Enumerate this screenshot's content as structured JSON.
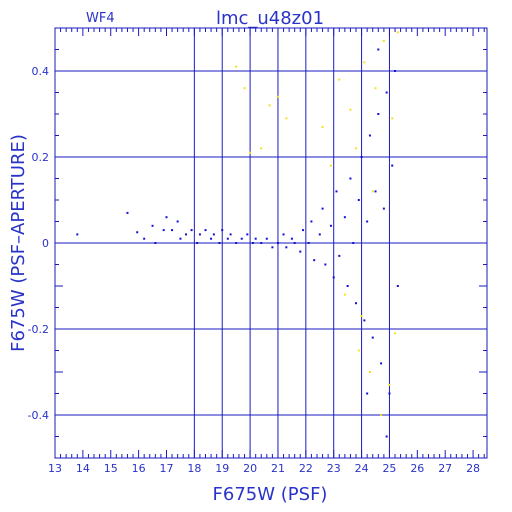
{
  "chart_data": {
    "type": "scatter",
    "title": "lmc_u48z01",
    "subtitle": "WF4",
    "xlabel": "F675W (PSF)",
    "ylabel": "F675W (PSF–APERTURE)",
    "xlim": [
      13,
      28.5
    ],
    "ylim": [
      -0.5,
      0.5
    ],
    "x_ticks": [
      "13",
      "14",
      "15",
      "16",
      "17",
      "18",
      "19",
      "20",
      "21",
      "22",
      "23",
      "24",
      "25",
      "26",
      "27",
      "28"
    ],
    "y_ticks": [
      "0.4",
      "0.2",
      "0",
      "-0.2",
      "-0.4"
    ],
    "grid": true,
    "colors": {
      "axes": "#1b1bc0",
      "series_main": "#1010d8",
      "series_rejected": "#f2e21a"
    },
    "series": [
      {
        "color_role": "series_main",
        "points": [
          [
            13.8,
            0.02
          ],
          [
            15.6,
            0.07
          ],
          [
            15.95,
            0.025
          ],
          [
            16.2,
            0.01
          ],
          [
            16.5,
            0.04
          ],
          [
            16.6,
            0.0
          ],
          [
            16.9,
            0.03
          ],
          [
            17.0,
            0.06
          ],
          [
            17.2,
            0.03
          ],
          [
            17.4,
            0.05
          ],
          [
            17.5,
            0.01
          ],
          [
            17.7,
            0.02
          ],
          [
            17.9,
            0.03
          ],
          [
            18.1,
            0.0
          ],
          [
            18.2,
            0.02
          ],
          [
            18.4,
            0.03
          ],
          [
            18.6,
            0.01
          ],
          [
            18.7,
            0.02
          ],
          [
            18.9,
            0.0
          ],
          [
            19.0,
            0.03
          ],
          [
            19.2,
            0.01
          ],
          [
            19.3,
            0.02
          ],
          [
            19.5,
            0.0
          ],
          [
            19.7,
            0.01
          ],
          [
            19.9,
            0.02
          ],
          [
            20.1,
            0.0
          ],
          [
            20.2,
            0.01
          ],
          [
            20.4,
            0.0
          ],
          [
            20.6,
            0.01
          ],
          [
            20.8,
            -0.01
          ],
          [
            21.0,
            0.0
          ],
          [
            21.2,
            0.02
          ],
          [
            21.3,
            -0.01
          ],
          [
            21.5,
            0.01
          ],
          [
            21.6,
            0.0
          ],
          [
            21.8,
            -0.02
          ],
          [
            21.9,
            0.03
          ],
          [
            22.1,
            0.0
          ],
          [
            22.2,
            0.05
          ],
          [
            22.3,
            -0.04
          ],
          [
            22.5,
            0.02
          ],
          [
            22.6,
            0.08
          ],
          [
            22.7,
            -0.05
          ],
          [
            22.9,
            0.04
          ],
          [
            23.0,
            -0.08
          ],
          [
            23.1,
            0.12
          ],
          [
            23.2,
            -0.03
          ],
          [
            23.4,
            0.06
          ],
          [
            23.5,
            -0.1
          ],
          [
            23.6,
            0.15
          ],
          [
            23.7,
            0.0
          ],
          [
            23.8,
            -0.14
          ],
          [
            23.9,
            0.1
          ],
          [
            24.0,
            0.2
          ],
          [
            24.1,
            -0.18
          ],
          [
            24.2,
            0.05
          ],
          [
            24.3,
            0.25
          ],
          [
            24.4,
            -0.22
          ],
          [
            24.5,
            0.12
          ],
          [
            24.6,
            0.3
          ],
          [
            24.7,
            -0.28
          ],
          [
            24.8,
            0.08
          ],
          [
            24.9,
            0.35
          ],
          [
            25.0,
            -0.35
          ],
          [
            25.1,
            0.18
          ],
          [
            25.2,
            0.4
          ],
          [
            25.3,
            -0.1
          ],
          [
            24.2,
            -0.35
          ],
          [
            24.6,
            0.45
          ],
          [
            24.9,
            -0.45
          ]
        ]
      },
      {
        "color_role": "series_rejected",
        "points": [
          [
            19.5,
            0.41
          ],
          [
            19.8,
            0.36
          ],
          [
            20.0,
            0.21
          ],
          [
            20.4,
            0.22
          ],
          [
            20.7,
            0.32
          ],
          [
            21.0,
            0.34
          ],
          [
            21.3,
            0.29
          ],
          [
            22.6,
            0.27
          ],
          [
            22.9,
            0.18
          ],
          [
            23.2,
            0.38
          ],
          [
            23.4,
            -0.12
          ],
          [
            23.6,
            0.31
          ],
          [
            23.9,
            -0.25
          ],
          [
            24.1,
            0.42
          ],
          [
            24.3,
            -0.3
          ],
          [
            24.5,
            0.36
          ],
          [
            24.7,
            -0.4
          ],
          [
            24.8,
            0.47
          ],
          [
            25.0,
            -0.33
          ],
          [
            25.1,
            0.29
          ],
          [
            25.2,
            -0.21
          ],
          [
            24.4,
            0.12
          ],
          [
            24.0,
            -0.17
          ],
          [
            23.8,
            0.22
          ],
          [
            25.3,
            0.49
          ]
        ]
      }
    ]
  }
}
